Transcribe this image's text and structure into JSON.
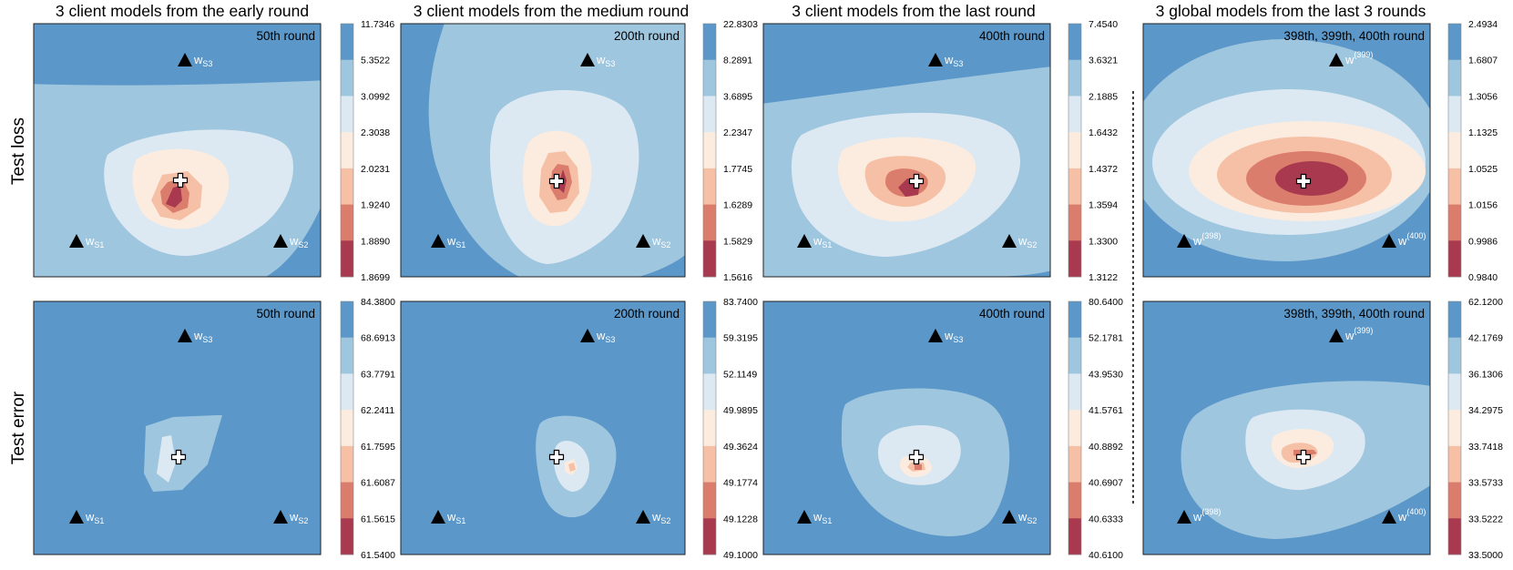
{
  "colors": {
    "levels": [
      "#a8394f",
      "#db7d6d",
      "#f6c0a6",
      "#fbecdf",
      "#dce9f2",
      "#9fc6df",
      "#5b97c8"
    ],
    "marker": "#000000",
    "center_fill": "#ffffff",
    "background": "#ffffff"
  },
  "chart_data": {
    "type": "contour",
    "row_labels": [
      "Test loss",
      "Test error"
    ],
    "column_titles": [
      "3 client models from the early round",
      "3 client models from the medium round",
      "3 client models from the last round",
      "3 global models from the last 3 rounds"
    ],
    "separator": "dashed vertical line between column 3 and column 4",
    "panels": [
      {
        "id": "loss-early",
        "row": "Test loss",
        "round_label": "50th round",
        "colorbar": [
          "11.7346",
          "5.3522",
          "3.0992",
          "2.3038",
          "2.0231",
          "1.9240",
          "1.8890",
          "1.8699"
        ],
        "markers": [
          "W_{S3}",
          "W_{S1}",
          "W_{S2}"
        ],
        "minimum": "near center",
        "markers_list": [
          {
            "base": "w",
            "sub": "S3",
            "sup": ""
          },
          {
            "base": "w",
            "sub": "S1",
            "sup": ""
          },
          {
            "base": "w",
            "sub": "S2",
            "sup": ""
          }
        ]
      },
      {
        "id": "loss-medium",
        "row": "Test loss",
        "round_label": "200th round",
        "colorbar": [
          "22.8303",
          "8.2891",
          "3.6895",
          "2.2347",
          "1.7745",
          "1.6289",
          "1.5829",
          "1.5616"
        ],
        "markers_list": [
          {
            "base": "w",
            "sub": "S3",
            "sup": ""
          },
          {
            "base": "w",
            "sub": "S1",
            "sup": ""
          },
          {
            "base": "w",
            "sub": "S2",
            "sup": ""
          }
        ]
      },
      {
        "id": "loss-last",
        "row": "Test loss",
        "round_label": "400th round",
        "colorbar": [
          "7.4540",
          "3.6321",
          "2.1885",
          "1.6432",
          "1.4372",
          "1.3594",
          "1.3300",
          "1.3122"
        ],
        "markers_list": [
          {
            "base": "w",
            "sub": "S3",
            "sup": ""
          },
          {
            "base": "w",
            "sub": "S1",
            "sup": ""
          },
          {
            "base": "w",
            "sub": "S2",
            "sup": ""
          }
        ]
      },
      {
        "id": "loss-global",
        "row": "Test loss",
        "round_label": "398th, 399th, 400th round",
        "colorbar": [
          "2.4934",
          "1.6807",
          "1.3056",
          "1.1325",
          "1.0525",
          "1.0156",
          "0.9986",
          "0.9840"
        ],
        "markers_list": [
          {
            "base": "w",
            "sub": "",
            "sup": "(399)"
          },
          {
            "base": "w",
            "sub": "",
            "sup": "(398)"
          },
          {
            "base": "w",
            "sub": "",
            "sup": "(400)"
          }
        ]
      },
      {
        "id": "error-early",
        "row": "Test error",
        "round_label": "50th round",
        "colorbar": [
          "84.3800",
          "68.6913",
          "63.7791",
          "62.2411",
          "61.7595",
          "61.6087",
          "61.5615",
          "61.5400"
        ],
        "markers_list": [
          {
            "base": "w",
            "sub": "S3",
            "sup": ""
          },
          {
            "base": "w",
            "sub": "S1",
            "sup": ""
          },
          {
            "base": "w",
            "sub": "S2",
            "sup": ""
          }
        ]
      },
      {
        "id": "error-medium",
        "row": "Test error",
        "round_label": "200th round",
        "colorbar": [
          "83.7400",
          "59.3195",
          "52.1149",
          "49.9895",
          "49.3624",
          "49.1774",
          "49.1228",
          "49.1000"
        ],
        "markers_list": [
          {
            "base": "w",
            "sub": "S3",
            "sup": ""
          },
          {
            "base": "w",
            "sub": "S1",
            "sup": ""
          },
          {
            "base": "w",
            "sub": "S2",
            "sup": ""
          }
        ]
      },
      {
        "id": "error-last",
        "row": "Test error",
        "round_label": "400th round",
        "colorbar": [
          "80.6400",
          "52.1781",
          "43.9530",
          "41.5761",
          "40.8892",
          "40.6907",
          "40.6333",
          "40.6100"
        ],
        "markers_list": [
          {
            "base": "w",
            "sub": "S3",
            "sup": ""
          },
          {
            "base": "w",
            "sub": "S1",
            "sup": ""
          },
          {
            "base": "w",
            "sub": "S2",
            "sup": ""
          }
        ]
      },
      {
        "id": "error-global",
        "row": "Test error",
        "round_label": "398th, 399th, 400th round",
        "colorbar": [
          "62.1200",
          "42.1769",
          "36.1306",
          "34.2975",
          "33.7418",
          "33.5733",
          "33.5222",
          "33.5000"
        ],
        "markers_list": [
          {
            "base": "w",
            "sub": "",
            "sup": "(399)"
          },
          {
            "base": "w",
            "sub": "",
            "sup": "(398)"
          },
          {
            "base": "w",
            "sub": "",
            "sup": "(400)"
          }
        ]
      }
    ]
  }
}
